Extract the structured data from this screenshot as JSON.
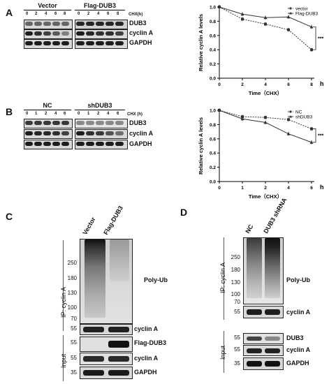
{
  "panels": {
    "A": {
      "letter": "A",
      "groups": [
        "Vector",
        "Flag-DUB3"
      ],
      "times": [
        "0",
        "2",
        "4",
        "6",
        "8",
        "0",
        "2",
        "4",
        "6",
        "8"
      ],
      "chx": "CHX(h)",
      "rows": [
        "DUB3",
        "cyclin A",
        "GAPDH"
      ]
    },
    "B": {
      "letter": "B",
      "groups": [
        "NC",
        "shDUB3"
      ],
      "times": [
        "0",
        "1",
        "2",
        "4",
        "6",
        "0",
        "1",
        "2",
        "4",
        "6"
      ],
      "chx": "CHX (h)",
      "rows": [
        "DUB3",
        "cyclin A",
        "GAPDH"
      ]
    },
    "C": {
      "letter": "C",
      "lanes": [
        "Vector",
        "Flag-DUB3"
      ],
      "ip_label": "IP: cyclin A",
      "input_label": "Input",
      "mw_ip": [
        "250",
        "180",
        "130",
        "100",
        "70"
      ],
      "mw_ipA": "55",
      "mw_input": [
        "55",
        "55",
        "35"
      ],
      "labels": [
        "Poly-Ub",
        "cyclin A",
        "Flag-DUB3",
        "cyclin A",
        "GAPDH"
      ]
    },
    "D": {
      "letter": "D",
      "lanes": [
        "NC",
        "DUB3 shRNA"
      ],
      "ip_label": "IP: cyclin A",
      "input_label": "Input",
      "mw_ip": [
        "250",
        "180",
        "130",
        "100",
        "70"
      ],
      "mw_ipA": "55",
      "mw_input": [
        "55",
        "55",
        "35"
      ],
      "labels": [
        "Poly-Ub",
        "cyclin A",
        "DUB3",
        "cyclin A",
        "GAPDH"
      ]
    }
  },
  "chart_data": [
    {
      "type": "line",
      "x": [
        0,
        2,
        4,
        6,
        8
      ],
      "series": [
        {
          "name": "vector",
          "values": [
            1.0,
            0.83,
            0.76,
            0.68,
            0.4
          ],
          "color": "#333333",
          "marker": "square",
          "dash": true
        },
        {
          "name": "Flag-DUB3",
          "values": [
            1.0,
            0.9,
            0.85,
            0.86,
            0.72
          ],
          "color": "#333333",
          "marker": "triangle",
          "dash": false
        }
      ],
      "xlabel": "Time（CHX）",
      "xunit": "h",
      "ylabel": "Relative cyclin A levels",
      "ylim": [
        0,
        1.0
      ],
      "yticks": [
        "0.0",
        "0.2",
        "0.4",
        "0.6",
        "0.8",
        "1.0"
      ],
      "xticks": [
        "0",
        "2",
        "4",
        "6",
        "8"
      ],
      "significance": "***"
    },
    {
      "type": "line",
      "x": [
        0,
        1,
        2,
        4,
        6
      ],
      "x_positions": [
        0,
        1,
        2,
        3,
        4
      ],
      "series": [
        {
          "name": "NC",
          "values": [
            1.0,
            0.91,
            0.9,
            0.87,
            0.74
          ],
          "color": "#333333",
          "marker": "square",
          "dash": true
        },
        {
          "name": "shDUB3",
          "values": [
            1.0,
            0.88,
            0.83,
            0.67,
            0.55
          ],
          "color": "#333333",
          "marker": "triangle",
          "dash": false
        }
      ],
      "xlabel": "Time（CHX）",
      "xunit": "h",
      "ylabel": "Relative cyclin A levels",
      "ylim": [
        0,
        1.0
      ],
      "yticks": [
        "0.0",
        "0.2",
        "0.4",
        "0.6",
        "0.8",
        "1.0"
      ],
      "xticks": [
        "0",
        "1",
        "2",
        "4",
        "6"
      ],
      "significance": "***"
    }
  ]
}
